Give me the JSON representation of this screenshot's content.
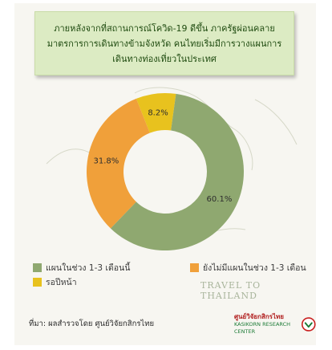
{
  "title_lines": [
    "ภายหลังจากที่สถานการณ์โควิด-19 ดีขึ้น ภาครัฐผ่อนคลาย",
    "มาตรการการเดินทางข้ามจังหวัด คนไทยเริ่มมีการวางแผนการ",
    "เดินทางท่องเที่ยวในประเทศ"
  ],
  "watermark": "TRAVEL TO THAILAND",
  "source": "ที่มา: ผลสำรวจโดย ศูนย์วิจัยกสิกรไทย",
  "logo": {
    "line1": "ศูนย์วิจัยกสิกรไทย",
    "line2": "KASIKORN RESEARCH CENTER",
    "icon": "kasikorn-logo-icon"
  },
  "chart_data": {
    "type": "pie",
    "donut": true,
    "title": "ภายหลังจากที่สถานการณ์โควิด-19 ดีขึ้น ภาครัฐผ่อนคลาย มาตรการการเดินทางข้ามจังหวัด คนไทยเริ่มมีการวางแผนการเดินทางท่องเที่ยวในประเทศ",
    "slices": [
      {
        "label": "แผนในช่วง 1-3 เดือนนี้",
        "value": 60.1,
        "value_label": "60.1%",
        "color": "#8fa870"
      },
      {
        "label": "ยังไม่มีแผนในช่วง 1-3 เดือน",
        "value": 31.8,
        "value_label": "31.8%",
        "color": "#f0a03a"
      },
      {
        "label": "รอปีหน้า",
        "value": 8.2,
        "value_label": "8.2%",
        "color": "#e8c21e"
      }
    ],
    "legend_position": "bottom"
  }
}
